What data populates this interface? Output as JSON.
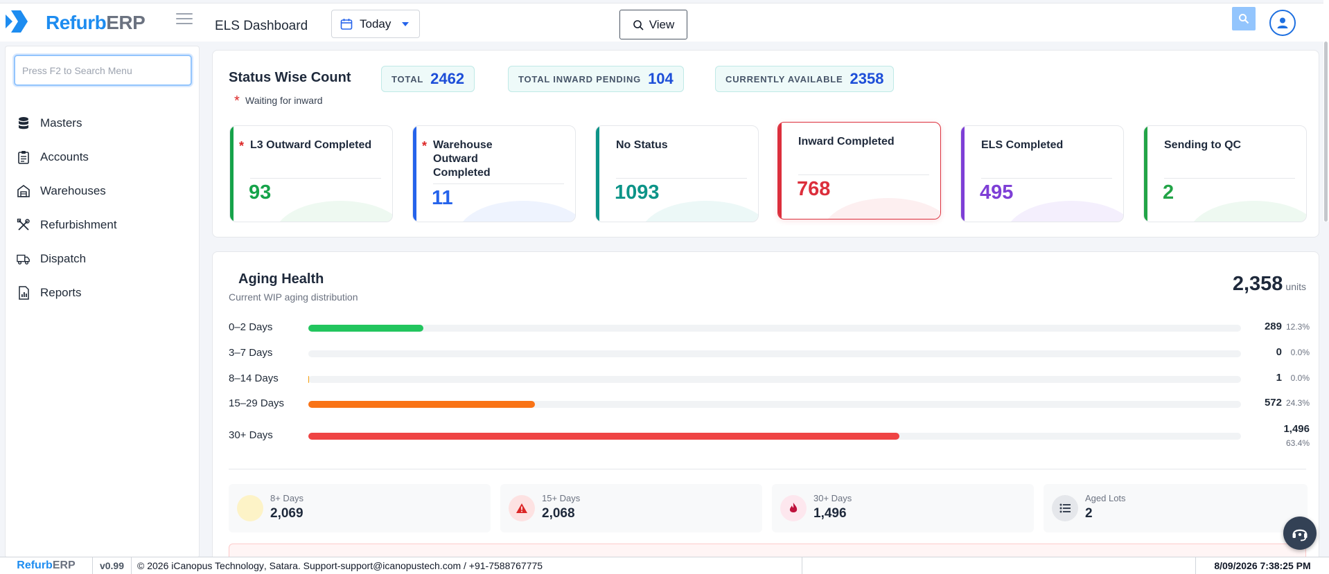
{
  "header": {
    "brand_a": "Refurb",
    "brand_b": "ERP",
    "page_title": "ELS Dashboard",
    "date_filter": "Today",
    "view_label": "View"
  },
  "sidebar": {
    "search_placeholder": "Press F2 to Search Menu",
    "items": [
      {
        "label": "Masters",
        "icon": "database-icon"
      },
      {
        "label": "Accounts",
        "icon": "clipboard-icon"
      },
      {
        "label": "Warehouses",
        "icon": "warehouse-icon"
      },
      {
        "label": "Refurbishment",
        "icon": "tools-icon"
      },
      {
        "label": "Dispatch",
        "icon": "truck-icon"
      },
      {
        "label": "Reports",
        "icon": "report-icon"
      }
    ]
  },
  "status": {
    "title": "Status Wise Count",
    "total_label": "TOTAL",
    "total_value": "2462",
    "pending_label": "TOTAL INWARD PENDING",
    "pending_value": "104",
    "available_label": "CURRENTLY AVAILABLE",
    "available_value": "2358",
    "waiting_note": "Waiting for inward",
    "cards": [
      {
        "label": "L3 Outward Completed",
        "value": "93",
        "starred": true,
        "color": "#16a34a"
      },
      {
        "label": "Warehouse Outward Completed",
        "value": "11",
        "starred": true,
        "color": "#2563eb"
      },
      {
        "label": "No Status",
        "value": "1093",
        "starred": false,
        "color": "#0d9488"
      },
      {
        "label": "Inward Completed",
        "value": "768",
        "starred": false,
        "color": "#dc2f3c"
      },
      {
        "label": "ELS Completed",
        "value": "495",
        "starred": false,
        "color": "#7e3fd6"
      },
      {
        "label": "Sending to QC",
        "value": "2",
        "starred": false,
        "color": "#22a447"
      }
    ]
  },
  "aging": {
    "title": "Aging Health",
    "subtitle": "Current WIP aging distribution",
    "total": "2,358",
    "units_label": "units",
    "rows": [
      {
        "label": "0–2 Days",
        "count": "289",
        "pct": "12.3%",
        "fraction": 0.123,
        "color": "#22c55e"
      },
      {
        "label": "3–7 Days",
        "count": "0",
        "pct": "0.0%",
        "fraction": 0.0,
        "color": "#22c55e"
      },
      {
        "label": "8–14 Days",
        "count": "1",
        "pct": "0.0%",
        "fraction": 0.0004,
        "color": "#f59e0b"
      },
      {
        "label": "15–29 Days",
        "count": "572",
        "pct": "24.3%",
        "fraction": 0.243,
        "color": "#f97316"
      },
      {
        "label": "30+ Days",
        "count": "1,496",
        "pct": "63.4%",
        "fraction": 0.634,
        "color": "#ef4444"
      }
    ],
    "summary": [
      {
        "label": "8+ Days",
        "value": "2,069",
        "icon": "clock-icon"
      },
      {
        "label": "15+ Days",
        "value": "2,068",
        "icon": "warning-icon"
      },
      {
        "label": "30+ Days",
        "value": "1,496",
        "icon": "fire-icon"
      },
      {
        "label": "Aged Lots",
        "value": "2",
        "icon": "list-icon"
      }
    ]
  },
  "footer": {
    "brand_a": "Refurb",
    "brand_b": "ERP",
    "version": "v0.99",
    "copyright_a": "© 2026 ",
    "company": "iCanopus Technology",
    "copyright_b": ", Satara. Support-",
    "email": "support@icanopustech.com",
    "phone": " / +91-7588767775",
    "datetime": "8/09/2026 7:38:25 PM"
  }
}
